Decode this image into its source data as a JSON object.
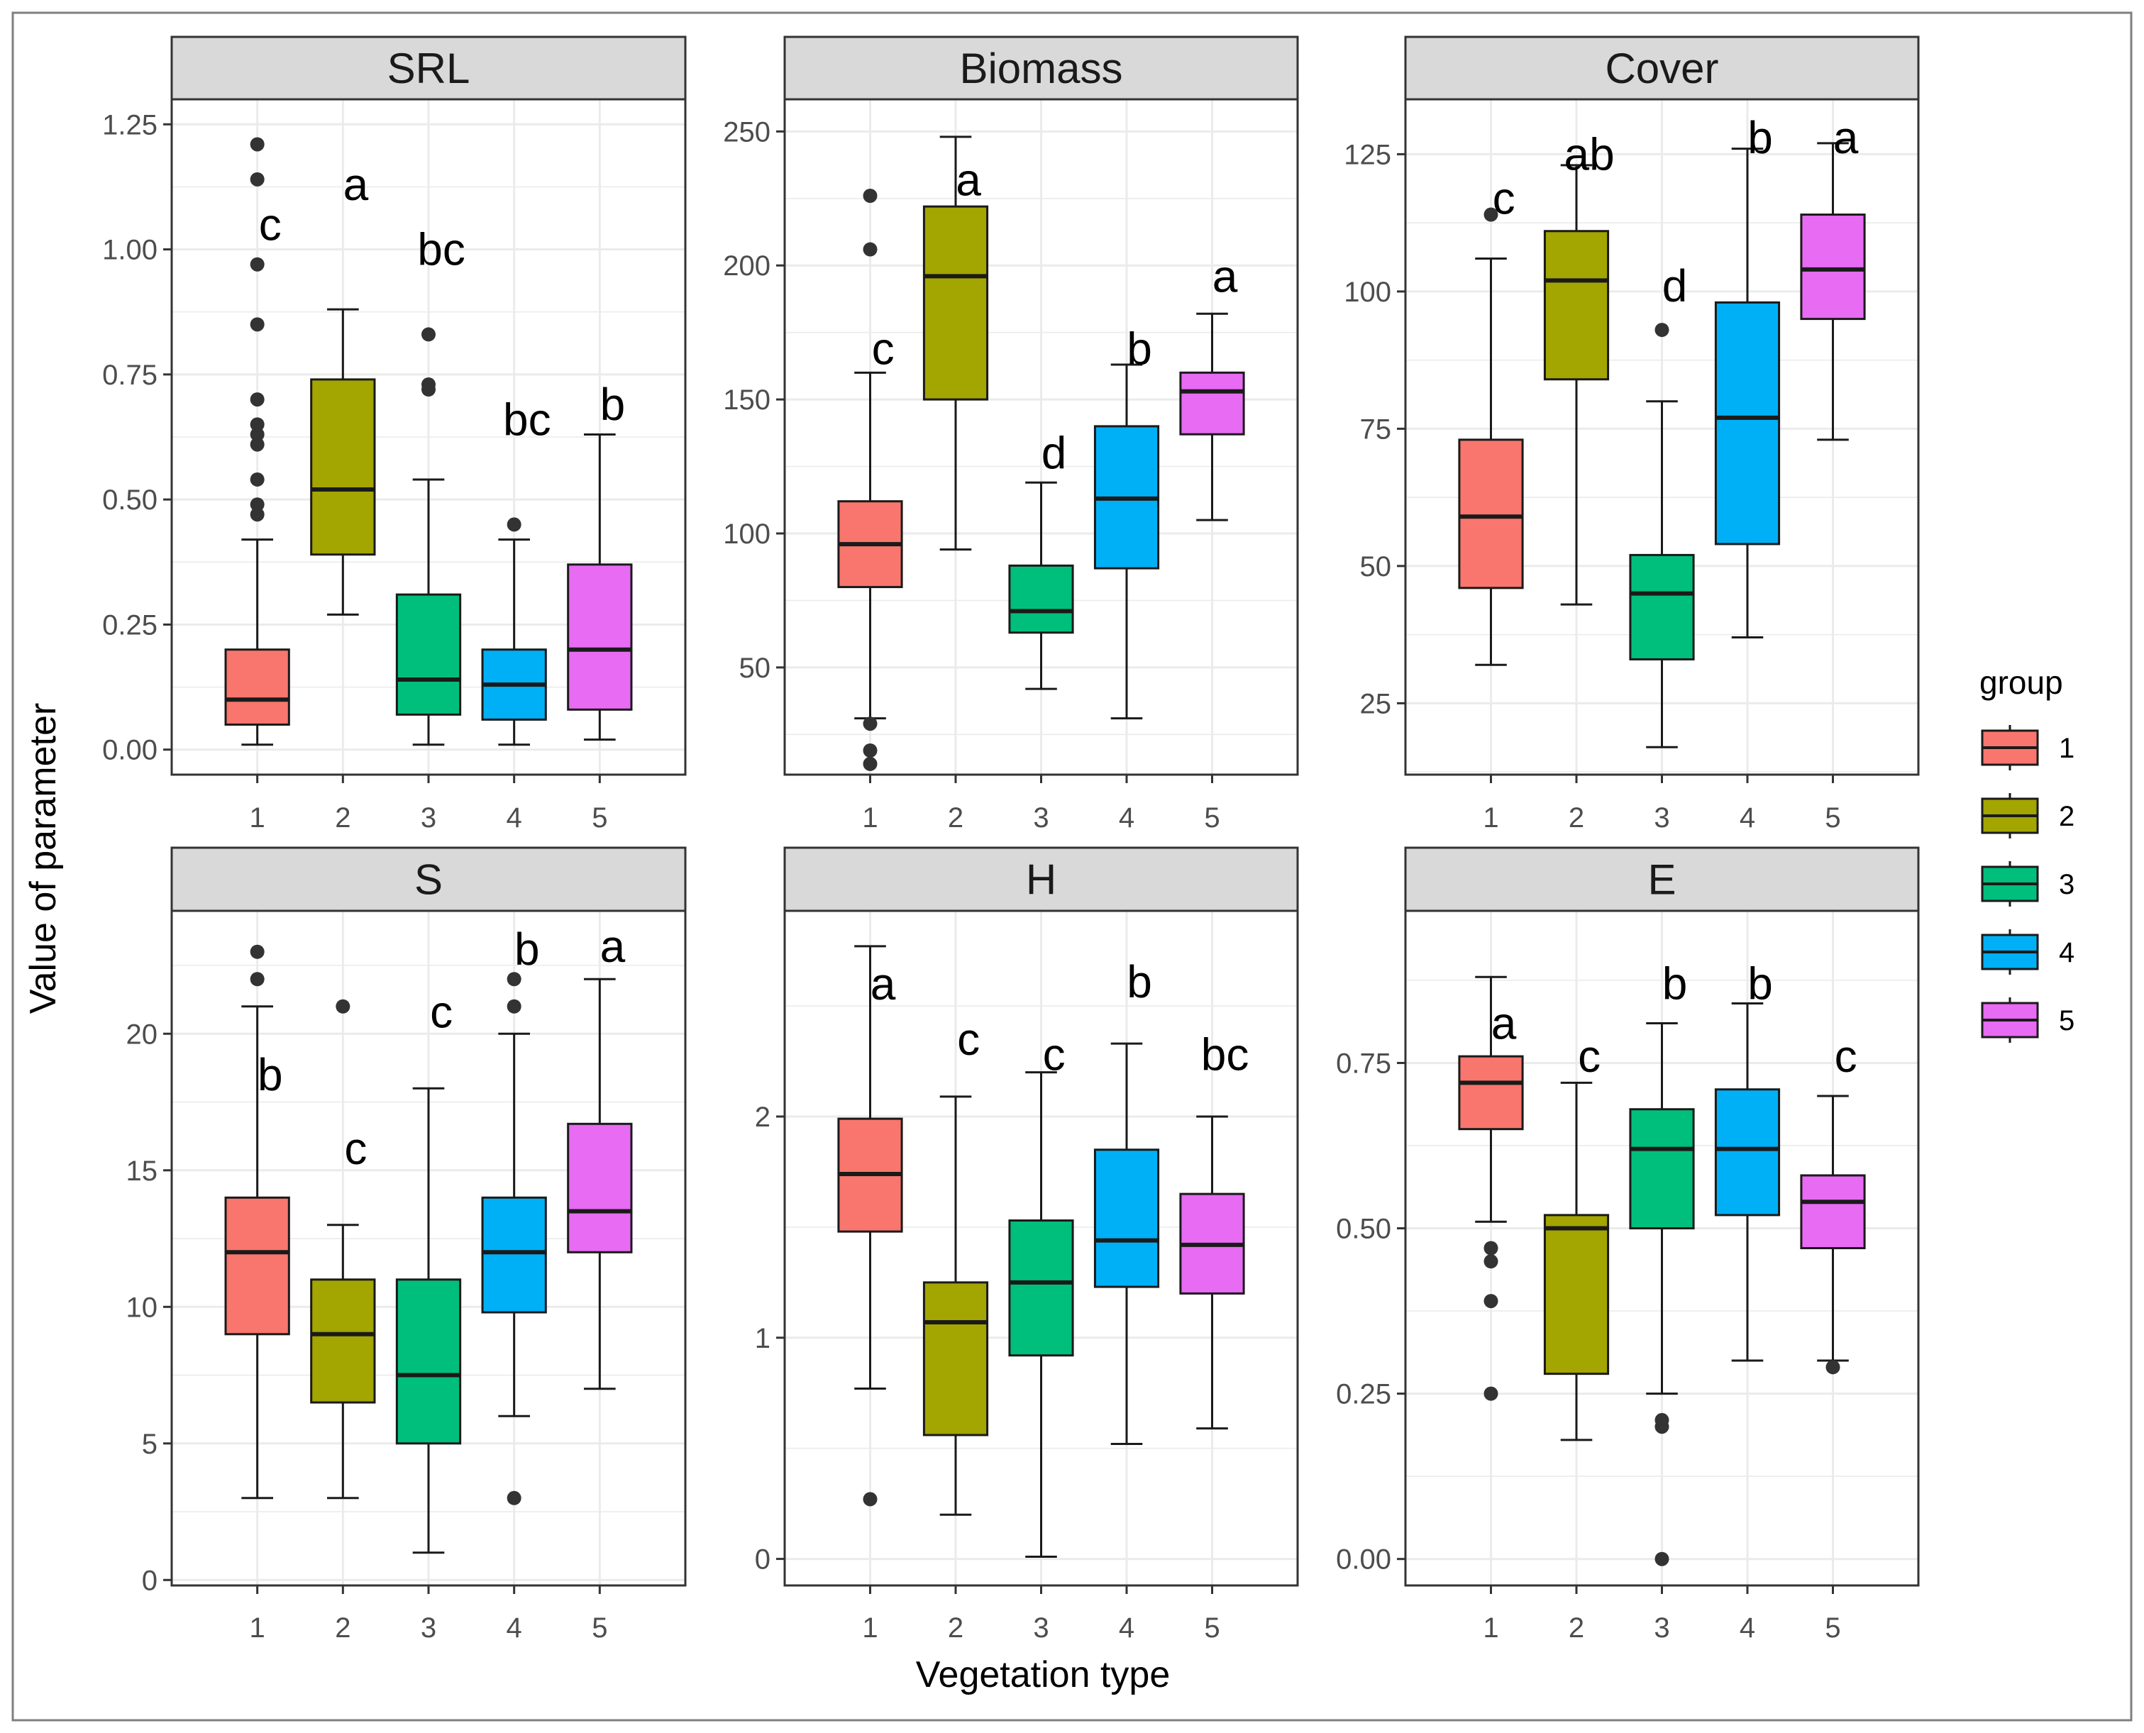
{
  "chart_data": {
    "type": "boxplot",
    "xlabel": "Vegetation type",
    "ylabel": "Value of parameter",
    "categories": [
      "1",
      "2",
      "3",
      "4",
      "5"
    ],
    "legend": {
      "title": "group",
      "position": "right",
      "entries": [
        {
          "label": "1",
          "color": "#F8766D"
        },
        {
          "label": "2",
          "color": "#A3A500"
        },
        {
          "label": "3",
          "color": "#00BF7D"
        },
        {
          "label": "4",
          "color": "#00B0F6"
        },
        {
          "label": "5",
          "color": "#E76BF3"
        }
      ]
    },
    "colors": {
      "panel_border": "#333333",
      "strip_fill": "#D9D9D9",
      "grid": "#EBEBEB",
      "outer_frame": "#7F7F7F"
    },
    "panels": [
      {
        "title": "SRL",
        "ylim": [
          -0.05,
          1.3
        ],
        "yticks": [
          0.0,
          0.25,
          0.5,
          0.75,
          1.0,
          1.25
        ],
        "ytick_labels": [
          "0.00",
          "0.25",
          "0.50",
          "0.75",
          "1.00",
          "1.25"
        ],
        "boxes": [
          {
            "group": "1",
            "whisker_low": 0.01,
            "q1": 0.05,
            "median": 0.1,
            "q3": 0.2,
            "whisker_high": 0.42,
            "outliers": [
              0.47,
              0.49,
              0.54,
              0.61,
              0.63,
              0.65,
              0.7,
              0.85,
              0.97,
              1.14,
              1.21
            ],
            "letter": "c",
            "letter_y": 1.05
          },
          {
            "group": "2",
            "whisker_low": 0.27,
            "q1": 0.39,
            "median": 0.52,
            "q3": 0.74,
            "whisker_high": 0.88,
            "outliers": [],
            "letter": "a",
            "letter_y": 1.13
          },
          {
            "group": "3",
            "whisker_low": 0.01,
            "q1": 0.07,
            "median": 0.14,
            "q3": 0.31,
            "whisker_high": 0.54,
            "outliers": [
              0.72,
              0.73,
              0.83
            ],
            "letter": "bc",
            "letter_y": 1.0
          },
          {
            "group": "4",
            "whisker_low": 0.01,
            "q1": 0.06,
            "median": 0.13,
            "q3": 0.2,
            "whisker_high": 0.42,
            "outliers": [
              0.45
            ],
            "letter": "bc",
            "letter_y": 0.66
          },
          {
            "group": "5",
            "whisker_low": 0.02,
            "q1": 0.08,
            "median": 0.2,
            "q3": 0.37,
            "whisker_high": 0.63,
            "outliers": [],
            "letter": "b",
            "letter_y": 0.69
          }
        ]
      },
      {
        "title": "Biomass",
        "ylim": [
          10,
          262
        ],
        "yticks": [
          50,
          100,
          150,
          200,
          250
        ],
        "ytick_labels": [
          "50",
          "100",
          "150",
          "200",
          "250"
        ],
        "boxes": [
          {
            "group": "1",
            "whisker_low": 31,
            "q1": 80,
            "median": 96,
            "q3": 112,
            "whisker_high": 160,
            "outliers": [
              14,
              19,
              29,
              206,
              226
            ],
            "letter": "c",
            "letter_y": 169
          },
          {
            "group": "2",
            "whisker_low": 94,
            "q1": 150,
            "median": 196,
            "q3": 222,
            "whisker_high": 248,
            "outliers": [],
            "letter": "a",
            "letter_y": 232
          },
          {
            "group": "3",
            "whisker_low": 42,
            "q1": 63,
            "median": 71,
            "q3": 88,
            "whisker_high": 119,
            "outliers": [],
            "letter": "d",
            "letter_y": 130
          },
          {
            "group": "4",
            "whisker_low": 31,
            "q1": 87,
            "median": 113,
            "q3": 140,
            "whisker_high": 163,
            "outliers": [],
            "letter": "b",
            "letter_y": 169
          },
          {
            "group": "5",
            "whisker_low": 105,
            "q1": 137,
            "median": 153,
            "q3": 160,
            "whisker_high": 182,
            "outliers": [],
            "letter": "a",
            "letter_y": 196
          }
        ]
      },
      {
        "title": "Cover",
        "ylim": [
          12,
          135
        ],
        "yticks": [
          25,
          50,
          75,
          100,
          125
        ],
        "ytick_labels": [
          "25",
          "50",
          "75",
          "100",
          "125"
        ],
        "boxes": [
          {
            "group": "1",
            "whisker_low": 32,
            "q1": 46,
            "median": 59,
            "q3": 73,
            "whisker_high": 106,
            "outliers": [
              114
            ],
            "letter": "c",
            "letter_y": 117
          },
          {
            "group": "2",
            "whisker_low": 43,
            "q1": 84,
            "median": 102,
            "q3": 111,
            "whisker_high": 123,
            "outliers": [],
            "letter": "ab",
            "letter_y": 125
          },
          {
            "group": "3",
            "whisker_low": 17,
            "q1": 33,
            "median": 45,
            "q3": 52,
            "whisker_high": 80,
            "outliers": [
              93
            ],
            "letter": "d",
            "letter_y": 101
          },
          {
            "group": "4",
            "whisker_low": 37,
            "q1": 54,
            "median": 77,
            "q3": 98,
            "whisker_high": 126,
            "outliers": [],
            "letter": "b",
            "letter_y": 128
          },
          {
            "group": "5",
            "whisker_low": 73,
            "q1": 95,
            "median": 104,
            "q3": 114,
            "whisker_high": 127,
            "outliers": [],
            "letter": "a",
            "letter_y": 128
          }
        ]
      },
      {
        "title": "S",
        "ylim": [
          -0.2,
          24.5
        ],
        "yticks": [
          0,
          5,
          10,
          15,
          20
        ],
        "ytick_labels": [
          "0",
          "5",
          "10",
          "15",
          "20"
        ],
        "boxes": [
          {
            "group": "1",
            "whisker_low": 3,
            "q1": 9,
            "median": 12,
            "q3": 14,
            "whisker_high": 21,
            "outliers": [
              22,
              23
            ],
            "letter": "b",
            "letter_y": 18.5
          },
          {
            "group": "2",
            "whisker_low": 3,
            "q1": 6.5,
            "median": 9,
            "q3": 11,
            "whisker_high": 13,
            "outliers": [
              21
            ],
            "letter": "c",
            "letter_y": 15.8
          },
          {
            "group": "3",
            "whisker_low": 1,
            "q1": 5,
            "median": 7.5,
            "q3": 11,
            "whisker_high": 18,
            "outliers": [],
            "letter": "c",
            "letter_y": 20.8
          },
          {
            "group": "4",
            "whisker_low": 6,
            "q1": 9.8,
            "median": 12,
            "q3": 14,
            "whisker_high": 20,
            "outliers": [
              3,
              21,
              22
            ],
            "letter": "b",
            "letter_y": 23.1
          },
          {
            "group": "5",
            "whisker_low": 7,
            "q1": 12,
            "median": 13.5,
            "q3": 16.7,
            "whisker_high": 22,
            "outliers": [],
            "letter": "a",
            "letter_y": 23.2
          }
        ]
      },
      {
        "title": "H",
        "ylim": [
          -0.12,
          2.93
        ],
        "yticks": [
          0,
          1,
          2
        ],
        "ytick_labels": [
          "0",
          "1",
          "2"
        ],
        "boxes": [
          {
            "group": "1",
            "whisker_low": 0.77,
            "q1": 1.48,
            "median": 1.74,
            "q3": 1.99,
            "whisker_high": 2.77,
            "outliers": [
              0.27
            ],
            "letter": "a",
            "letter_y": 2.6
          },
          {
            "group": "2",
            "whisker_low": 0.2,
            "q1": 0.56,
            "median": 1.07,
            "q3": 1.25,
            "whisker_high": 2.09,
            "outliers": [],
            "letter": "c",
            "letter_y": 2.35
          },
          {
            "group": "3",
            "whisker_low": 0.01,
            "q1": 0.92,
            "median": 1.25,
            "q3": 1.53,
            "whisker_high": 2.2,
            "outliers": [],
            "letter": "c",
            "letter_y": 2.28
          },
          {
            "group": "4",
            "whisker_low": 0.52,
            "q1": 1.23,
            "median": 1.44,
            "q3": 1.85,
            "whisker_high": 2.33,
            "outliers": [],
            "letter": "b",
            "letter_y": 2.61
          },
          {
            "group": "5",
            "whisker_low": 0.59,
            "q1": 1.2,
            "median": 1.42,
            "q3": 1.65,
            "whisker_high": 2.0,
            "outliers": [],
            "letter": "bc",
            "letter_y": 2.28
          }
        ]
      },
      {
        "title": "E",
        "ylim": [
          -0.04,
          0.98
        ],
        "yticks": [
          0.0,
          0.25,
          0.5,
          0.75
        ],
        "ytick_labels": [
          "0.00",
          "0.25",
          "0.50",
          "0.75"
        ],
        "boxes": [
          {
            "group": "1",
            "whisker_low": 0.51,
            "q1": 0.65,
            "median": 0.72,
            "q3": 0.76,
            "whisker_high": 0.88,
            "outliers": [
              0.25,
              0.39,
              0.45,
              0.47
            ],
            "letter": "a",
            "letter_y": 0.81
          },
          {
            "group": "2",
            "whisker_low": 0.18,
            "q1": 0.28,
            "median": 0.5,
            "q3": 0.52,
            "whisker_high": 0.72,
            "outliers": [],
            "letter": "c",
            "letter_y": 0.76
          },
          {
            "group": "3",
            "whisker_low": 0.25,
            "q1": 0.5,
            "median": 0.62,
            "q3": 0.68,
            "whisker_high": 0.81,
            "outliers": [
              0.0,
              0.2,
              0.21
            ],
            "letter": "b",
            "letter_y": 0.87
          },
          {
            "group": "4",
            "whisker_low": 0.3,
            "q1": 0.52,
            "median": 0.62,
            "q3": 0.71,
            "whisker_high": 0.84,
            "outliers": [],
            "letter": "b",
            "letter_y": 0.87
          },
          {
            "group": "5",
            "whisker_low": 0.3,
            "q1": 0.47,
            "median": 0.54,
            "q3": 0.58,
            "whisker_high": 0.7,
            "outliers": [
              0.29
            ],
            "letter": "c",
            "letter_y": 0.76
          }
        ]
      }
    ]
  }
}
